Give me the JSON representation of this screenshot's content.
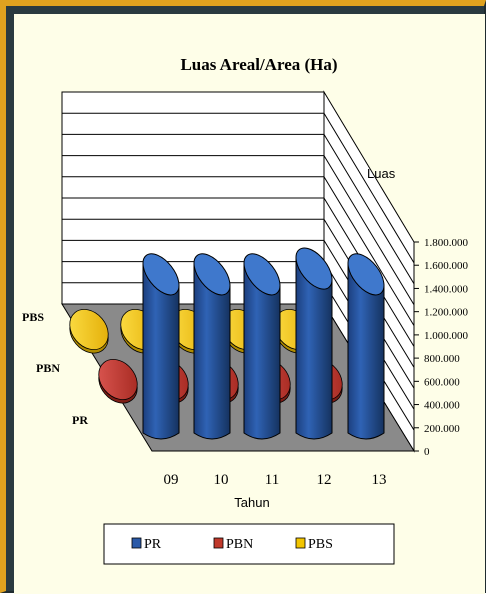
{
  "chart_data": {
    "type": "bar",
    "subtype": "3d-cylinder",
    "title": "Luas Areal/Area (Ha)",
    "xlabel": "Tahun",
    "zlabel": "Luas",
    "categories": [
      "09",
      "10",
      "11",
      "12",
      "13"
    ],
    "depth_labels": [
      "PBS",
      "PBN",
      "PR"
    ],
    "y_ticks": [
      "0",
      "200.000",
      "400.000",
      "600.000",
      "800.000",
      "1.000.000",
      "1.200.000",
      "1.400.000",
      "1.600.000",
      "1.800.000"
    ],
    "ylim": [
      0,
      1800000
    ],
    "series": [
      {
        "name": "PR",
        "values": [
          1530000,
          1530000,
          1530000,
          1580000,
          1530000
        ],
        "color": "#2b5aa8"
      },
      {
        "name": "PBN",
        "values": [
          30000,
          30000,
          30000,
          30000,
          30000
        ],
        "color": "#c0392b"
      },
      {
        "name": "PBS",
        "values": [
          30000,
          30000,
          30000,
          30000,
          30000
        ],
        "color": "#f2c500"
      }
    ],
    "legend": {
      "position": "bottom",
      "entries": [
        "PR",
        "PBN",
        "PBS"
      ]
    },
    "colors": {
      "frame": "#e0a21f",
      "border": "#2a3a40",
      "background": "#fefee8",
      "floor": "#8a8a8a"
    }
  }
}
